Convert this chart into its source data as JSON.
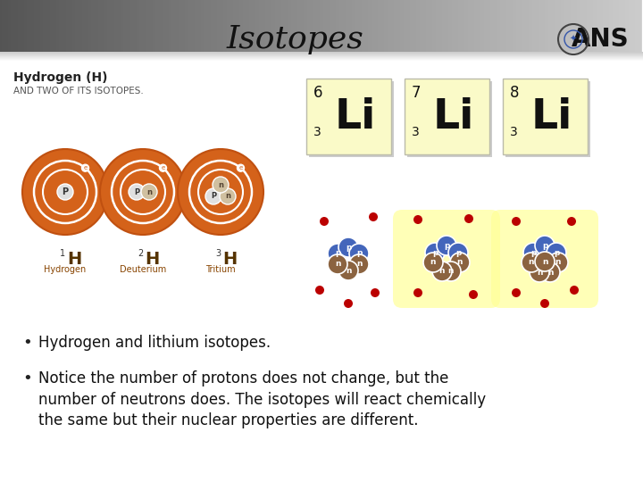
{
  "title": "Isotopes",
  "title_fontsize": 26,
  "title_color": "#111111",
  "slide_bg": "#ffffff",
  "bullet1": "Hydrogen and lithium isotopes.",
  "bullet2": "Notice the number of protons does not change, but the\nnumber of neutrons does. The isotopes will react chemically\nthe same but their nuclear properties are different.",
  "bullet_fontsize": 12,
  "hydrogen_title": "Hydrogen (H)",
  "hydrogen_subtitle": "AND TWO OF ITS ISOTOPES.",
  "h_superscripts": [
    "1",
    "2",
    "3"
  ],
  "h_sublabels": [
    "Hydrogen",
    "Deuterium",
    "Tritium"
  ],
  "li_mass": [
    "6",
    "7",
    "8"
  ],
  "li_atomic": [
    "3",
    "3",
    "3"
  ],
  "orange": "#D4621A",
  "yellow_bg": "#FAFAC8",
  "yellow_glow": "#FFFF99",
  "blue_nucleon": "#4466BB",
  "brown_nucleon": "#8B6340",
  "red_dot": "#BB0000",
  "header_left": "#555555",
  "header_right": "#CCCCCC"
}
